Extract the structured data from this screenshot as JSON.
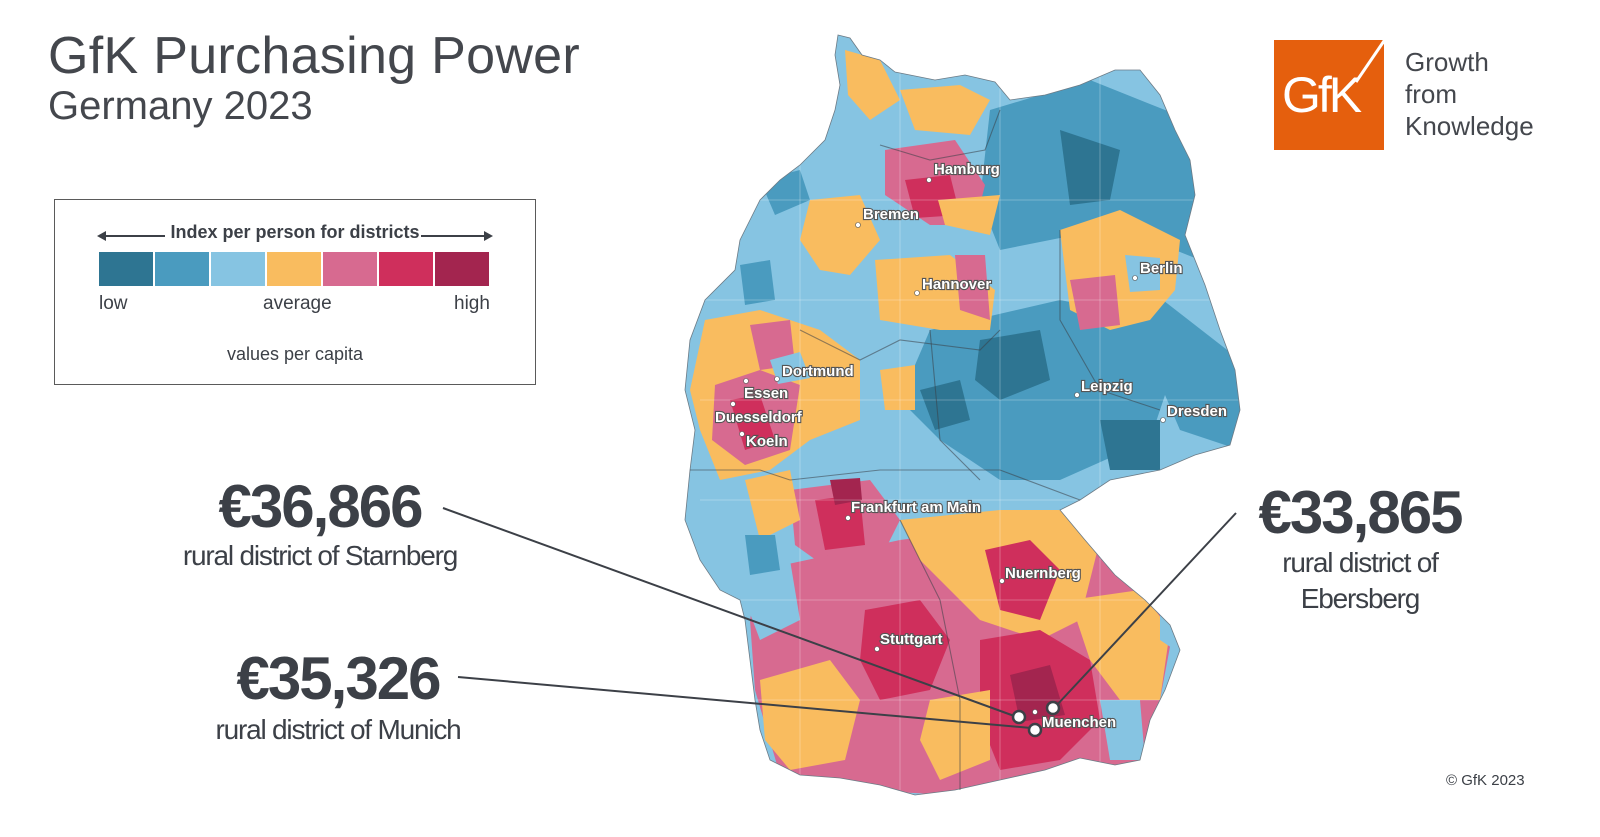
{
  "title": "GfK Purchasing Power",
  "subtitle": "Germany 2023",
  "legend": {
    "title": "Index per person for districts",
    "low": "low",
    "average": "average",
    "high": "high",
    "note": "values per capita",
    "colors": [
      "#2e7592",
      "#4a9bbf",
      "#86c4e2",
      "#f9bc5f",
      "#d76a90",
      "#cf2f5c",
      "#a3254f"
    ]
  },
  "callouts": [
    {
      "value": "€36,866",
      "label": "rural district of Starnberg"
    },
    {
      "value": "€35,326",
      "label": "rural district of Munich"
    },
    {
      "value": "€33,865",
      "label_line1": "rural district of",
      "label_line2": "Ebersberg"
    }
  ],
  "cities": [
    {
      "name": "Hamburg"
    },
    {
      "name": "Bremen"
    },
    {
      "name": "Hannover"
    },
    {
      "name": "Berlin"
    },
    {
      "name": "Dortmund"
    },
    {
      "name": "Essen"
    },
    {
      "name": "Duesseldorf"
    },
    {
      "name": "Koeln"
    },
    {
      "name": "Leipzig"
    },
    {
      "name": "Dresden"
    },
    {
      "name": "Frankfurt am Main"
    },
    {
      "name": "Nuernberg"
    },
    {
      "name": "Stuttgart"
    },
    {
      "name": "Muenchen"
    }
  ],
  "logo": {
    "text": "GfK",
    "tagline1": "Growth",
    "tagline2": "from",
    "tagline3": "Knowledge",
    "color": "#e55f0d"
  },
  "copyright": "© GfK 2023"
}
